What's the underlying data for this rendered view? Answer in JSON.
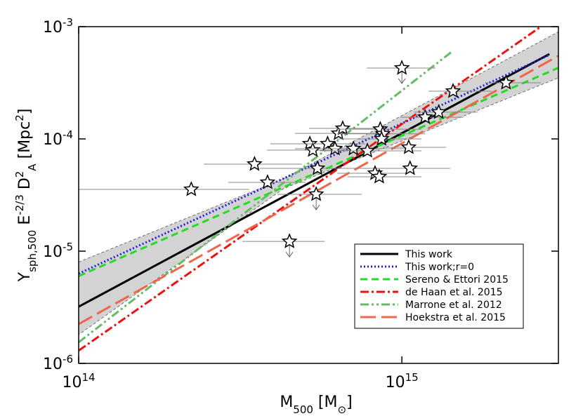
{
  "chart_data": {
    "type": "scatter",
    "xlabel": [
      {
        "text": "M"
      },
      {
        "text": "500",
        "shift": "sub"
      },
      {
        "text": " [M"
      },
      {
        "text": "⊙",
        "shift": "sub"
      },
      {
        "text": "]"
      }
    ],
    "ylabel": [
      {
        "text": "Y"
      },
      {
        "text": "sph,500",
        "shift": "sub"
      },
      {
        "text": " E"
      },
      {
        "text": "-2/3",
        "shift": "super"
      },
      {
        "text": " D"
      },
      {
        "text": "2",
        "shift": "super"
      },
      {
        "text": "A",
        "shift": "sub"
      },
      {
        "text": " [Mpc"
      },
      {
        "text": "2",
        "shift": "super"
      },
      {
        "text": "]"
      }
    ],
    "xscale": "log",
    "yscale": "log",
    "xlim": [
      100000000000000.0,
      3050000000000000.0
    ],
    "ylim": [
      1e-06,
      0.001
    ],
    "xticks": [
      {
        "value": 100000000000000.0,
        "label": "10",
        "exponent": "14"
      },
      {
        "value": 1000000000000000.0,
        "label": "10",
        "exponent": "15"
      }
    ],
    "yticks": [
      {
        "value": 1e-06,
        "label": "10",
        "exponent": "-6"
      },
      {
        "value": 1e-05,
        "label": "10",
        "exponent": "-5"
      },
      {
        "value": 0.0001,
        "label": "10",
        "exponent": "-4"
      },
      {
        "value": 0.001,
        "label": "10",
        "exponent": "-3"
      }
    ],
    "legend_loc": "lower right",
    "band": {
      "color": "#d3d3d3",
      "x": [
        100000000000000.0,
        430000000000000.0,
        3050000000000000.0
      ],
      "upper": [
        8e-06,
        4.4e-05,
        0.0009
      ],
      "lower": [
        1.8e-06,
        3.6e-05,
        0.00035
      ]
    },
    "series": [
      {
        "name": "This work",
        "color": "#000000",
        "dash": "",
        "x": [
          100000000000000.0,
          2860000000000000.0
        ],
        "values": [
          3.2e-06,
          0.00057
        ]
      },
      {
        "name": "This work;r=0",
        "color": "#1f1fe0",
        "dash": "2,3",
        "x": [
          100000000000000.0,
          2860000000000000.0
        ],
        "values": [
          6.3e-06,
          0.00056
        ]
      },
      {
        "name": "Sereno & Ettori 2015",
        "color": "#22dd22",
        "dash": "10,6",
        "x": [
          100000000000000.0,
          3050000000000000.0
        ],
        "values": [
          6e-06,
          0.00043
        ]
      },
      {
        "name": "de Haan et al. 2015",
        "color": "#ee1111",
        "dash": "12,4,3,4",
        "x": [
          100000000000000.0,
          2690000000000000.0
        ],
        "values": [
          1.3e-06,
          0.001
        ]
      },
      {
        "name": "Marrone et al. 2012",
        "color": "#66bb66",
        "dash": "12,4,3,4,3,4",
        "x": [
          100000000000000.0,
          1440000000000000.0
        ],
        "values": [
          1.54e-06,
          0.00061
        ]
      },
      {
        "name": "Hoekstra et al. 2015",
        "color": "#f0664a",
        "dash": "22,8",
        "x": [
          100000000000000.0,
          3050000000000000.0
        ],
        "values": [
          2.24e-06,
          0.00055
        ]
      }
    ],
    "points": {
      "x": [
        223000000000000.0,
        350000000000000.0,
        384000000000000.0,
        449000000000000.0,
        519000000000000.0,
        530000000000000.0,
        548000000000000.0,
        543000000000000.0,
        589000000000000.0,
        621000000000000.0,
        637000000000000.0,
        656000000000000.0,
        708000000000000.0,
        782000000000000.0,
        826000000000000.0,
        851000000000000.0,
        857000000000000.0,
        873000000000000.0,
        865000000000000.0,
        1000000000000000.0,
        1050000000000000.0,
        1060000000000000.0,
        1180000000000000.0,
        1300000000000000.0,
        1440000000000000.0,
        2100000000000000.0
      ],
      "x_lo": [
        100000000000000.0,
        244000000000000.0,
        290000000000000.0,
        321000000000000.0,
        392000000000000.0,
        383000000000000.0,
        364000000000000.0,
        412000000000000.0,
        467000000000000.0,
        467000000000000.0,
        467000000000000.0,
        516000000000000.0,
        543000000000000.0,
        557000000000000.0,
        631000000000000.0,
        680000000000000.0,
        631000000000000.0,
        631000000000000.0,
        631000000000000.0,
        779000000000000.0,
        873000000000000.0,
        851000000000000.0,
        990000000000000.0,
        1090000000000000.0,
        1210000000000000.0,
        1810000000000000.0
      ],
      "x_hi": [
        337000000000000.0,
        491000000000000.0,
        504000000000000.0,
        577000000000000.0,
        680000000000000.0,
        733000000000000.0,
        851000000000000.0,
        752000000000000.0,
        770000000000000.0,
        851000000000000.0,
        851000000000000.0,
        873000000000000.0,
        1040000000000000.0,
        1150000000000000.0,
        1040000000000000.0,
        1150000000000000.0,
        1150000000000000.0,
        1180000000000000.0,
        1150000000000000.0,
        1270000000000000.0,
        1370000000000000.0,
        1410000000000000.0,
        1550000000000000.0,
        1720000000000000.0,
        1900000000000000.0,
        2690000000000000.0
      ],
      "values": [
        3.55e-05,
        5.96e-05,
        4.1e-05,
        1.22e-05,
        9.04e-05,
        7.94e-05,
        5.46e-05,
        3.21e-05,
        9.04e-05,
        8.18e-05,
        0.000112,
        0.000124,
        8.18e-05,
        7.83e-05,
        4.94e-05,
        4.6e-05,
        0.000122,
        0.000111,
        0.0001,
        0.000428,
        8.41e-05,
        5.46e-05,
        0.000156,
        0.000173,
        0.000266,
        0.000316
      ],
      "upper_limit": [
        false,
        false,
        false,
        true,
        false,
        false,
        false,
        true,
        false,
        false,
        false,
        false,
        false,
        false,
        false,
        false,
        false,
        false,
        false,
        true,
        false,
        false,
        false,
        false,
        false,
        false
      ]
    }
  }
}
